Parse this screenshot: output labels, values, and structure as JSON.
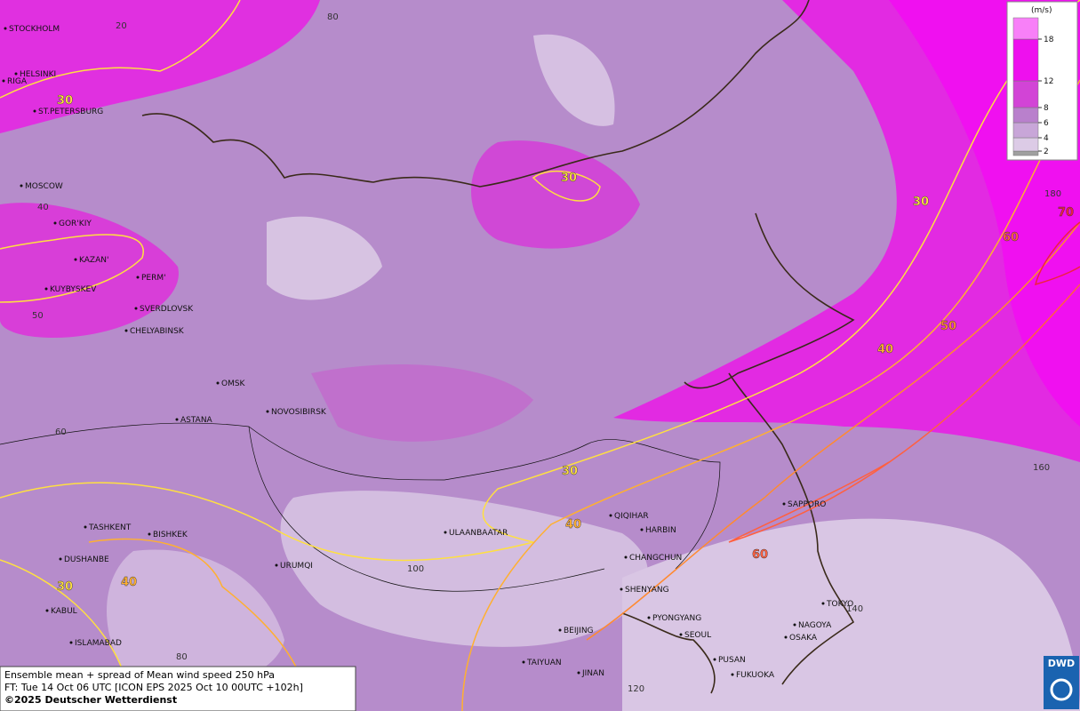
{
  "map": {
    "cities": [
      "STOCKHOLM",
      "HELSINKI",
      "RIGA",
      "ST.PETERSBURG",
      "MOSCOW",
      "GOR'KIY",
      "KAZAN'",
      "PERM'",
      "KUYBYSKEV",
      "SVERDLOVSK",
      "CHELYABINSK",
      "OMSK",
      "ASTANA",
      "NOVOSIBIRSK",
      "TASHKENT",
      "BISHKEK",
      "DUSHANBE",
      "URUMQI",
      "KABUL",
      "ISLAMABAD",
      "ULAANBAATAR",
      "QIQIHAR",
      "HARBIN",
      "CHANGCHUN",
      "SHENYANG",
      "PYONGYANG",
      "SEOUL",
      "BEIJING",
      "TAIYUAN",
      "JINAN",
      "PUSAN",
      "FUKUOKA",
      "SAPPORO",
      "TOKYO",
      "NAGOYA",
      "OSAKA"
    ],
    "grid_labels": [
      20,
      80,
      40,
      50,
      60,
      100,
      80,
      120,
      140,
      160,
      180
    ],
    "contour_labels": [
      30,
      30,
      30,
      30,
      30,
      40,
      40,
      40,
      50,
      60,
      60,
      70
    ],
    "contour_colors": {
      "30": "#ffe040",
      "40": "#ffb030",
      "50": "#ff8a30",
      "60": "#ff6040",
      "70": "#f02040"
    }
  },
  "legend": {
    "unit": "(m/s)",
    "ticks": [
      2,
      4,
      6,
      8,
      12,
      18
    ],
    "colors": [
      "#a0a0a0",
      "#dccbe6",
      "#c8a6d8",
      "#b980cc",
      "#d244d6",
      "#ee10ee",
      "#f880f8"
    ]
  },
  "footer": {
    "lines": [
      "Ensemble mean + spread of Mean wind speed 250 hPa",
      "FT: Tue 14 Oct 06 UTC [ICON EPS 2025 Oct 10 00UTC +102h]",
      "©2025 Deutscher Wetterdienst"
    ]
  },
  "logo": "DWD"
}
